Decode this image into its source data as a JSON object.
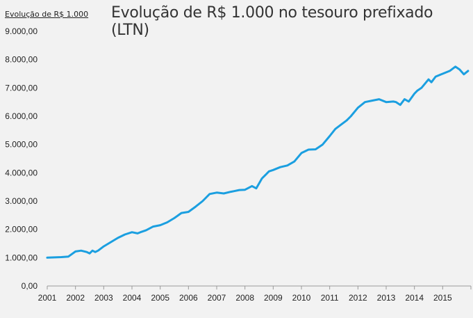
{
  "header": {
    "tag_label": "Evolução  de R$ 1.000",
    "title": "Evolução de R$ 1.000 no tesouro prefixado (LTN)"
  },
  "chart_data": {
    "type": "line",
    "title": "Evolução de R$ 1.000 no tesouro prefixado (LTN)",
    "xlabel": "",
    "ylabel": "",
    "x_ticks": [
      "2001",
      "2002",
      "2003",
      "2004",
      "2005",
      "2006",
      "2007",
      "2008",
      "2009",
      "2010",
      "2011",
      "2012",
      "2013",
      "2014",
      "2015"
    ],
    "y_ticks": [
      "0,00",
      "1.000,00",
      "2.000,00",
      "3.000,00",
      "4.000,00",
      "5.000,00",
      "6.000,00",
      "7.000,00",
      "8.000,00",
      "9.000,00"
    ],
    "xlim": [
      2001,
      2016
    ],
    "ylim": [
      0,
      9000
    ],
    "grid": false,
    "line_color": "#1b9fe0",
    "series": [
      {
        "x": [
          2001.0,
          2001.25,
          2001.5,
          2001.75,
          2002.0,
          2002.2,
          2002.4,
          2002.5,
          2002.6,
          2002.7,
          2002.8,
          2003.0,
          2003.25,
          2003.5,
          2003.75,
          2004.0,
          2004.2,
          2004.3,
          2004.5,
          2004.75,
          2005.0,
          2005.25,
          2005.5,
          2005.75,
          2006.0,
          2006.25,
          2006.5,
          2006.75,
          2007.0,
          2007.25,
          2007.5,
          2007.6,
          2007.8,
          2008.0,
          2008.25,
          2008.4,
          2008.6,
          2008.75,
          2008.85,
          2009.0,
          2009.25,
          2009.5,
          2009.75,
          2010.0,
          2010.25,
          2010.5,
          2010.75,
          2011.0,
          2011.2,
          2011.4,
          2011.6,
          2011.75,
          2012.0,
          2012.25,
          2012.5,
          2012.75,
          2013.0,
          2013.25,
          2013.35,
          2013.5,
          2013.65,
          2013.8,
          2014.0,
          2014.1,
          2014.25,
          2014.5,
          2014.6,
          2014.75,
          2015.0,
          2015.25,
          2015.45,
          2015.6,
          2015.75,
          2015.9
        ],
        "y": [
          1000,
          1010,
          1020,
          1040,
          1220,
          1250,
          1200,
          1150,
          1250,
          1200,
          1250,
          1400,
          1550,
          1700,
          1820,
          1900,
          1860,
          1900,
          1970,
          2100,
          2150,
          2250,
          2400,
          2580,
          2620,
          2800,
          3000,
          3250,
          3300,
          3270,
          3330,
          3350,
          3390,
          3400,
          3530,
          3450,
          3800,
          3950,
          4050,
          4100,
          4200,
          4260,
          4400,
          4700,
          4820,
          4830,
          5000,
          5300,
          5550,
          5700,
          5850,
          6000,
          6300,
          6500,
          6550,
          6600,
          6500,
          6520,
          6500,
          6400,
          6600,
          6520,
          6800,
          6900,
          7000,
          7300,
          7200,
          7400,
          7500,
          7600,
          7750,
          7650,
          7480,
          7600
        ]
      }
    ]
  }
}
